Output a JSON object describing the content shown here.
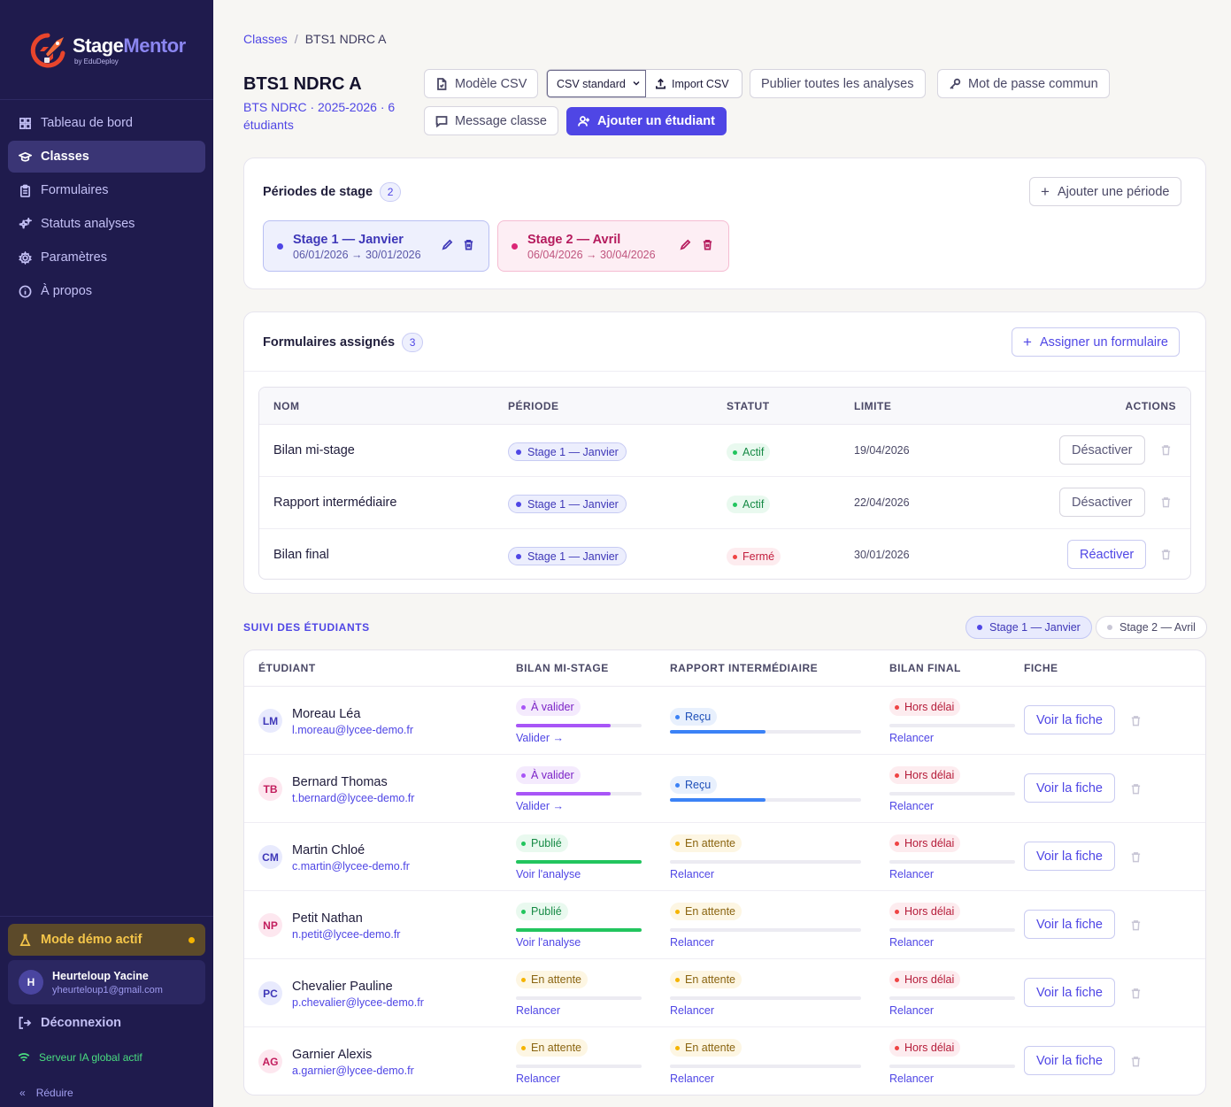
{
  "app": {
    "name_main": "Stage",
    "name_accent": "Mentor",
    "by": "by EduDeploy"
  },
  "sidebar": {
    "items": [
      {
        "label": "Tableau de bord",
        "icon": "grid-icon"
      },
      {
        "label": "Classes",
        "icon": "graduation-cap-icon",
        "active": true
      },
      {
        "label": "Formulaires",
        "icon": "clipboard-icon"
      },
      {
        "label": "Statuts analyses",
        "icon": "sparkles-icon"
      },
      {
        "label": "Paramètres",
        "icon": "gear-icon"
      },
      {
        "label": "À propos",
        "icon": "info-icon"
      }
    ],
    "demo": "Mode démo actif",
    "user": {
      "initial": "H",
      "name": "Heurteloup Yacine",
      "email": "yheurteloup1@gmail.com"
    },
    "logout": "Déconnexion",
    "ia_status": "Serveur IA global actif",
    "reduce": "Réduire"
  },
  "breadcrumb": {
    "parent": "Classes",
    "current": "BTS1 NDRC A"
  },
  "page": {
    "title": "BTS1 NDRC A",
    "subtitle": "BTS NDRC · 2025-2026 · 6 étudiants"
  },
  "toolbar": {
    "csv_model": "Modèle CSV",
    "csv_select": "CSV standard",
    "csv_import": "Import CSV",
    "publish_all": "Publier toutes les analyses",
    "common_password": "Mot de passe commun",
    "class_message": "Message classe",
    "add_student": "Ajouter un étudiant"
  },
  "periods": {
    "title": "Périodes de stage",
    "count": "2",
    "add": "Ajouter une période",
    "items": [
      {
        "name": "Stage 1 — Janvier",
        "dates": "06/01/2026 → 30/01/2026",
        "color": "#4f46e5"
      },
      {
        "name": "Stage 2 — Avril",
        "dates": "06/04/2026 → 30/04/2026",
        "color": "#db2777"
      }
    ]
  },
  "forms": {
    "title": "Formulaires assignés",
    "count": "3",
    "assign": "Assigner un formulaire",
    "columns": {
      "name": "NOM",
      "period": "PÉRIODE",
      "status": "STATUT",
      "limit": "LIMITE",
      "actions": "ACTIONS"
    },
    "rows": [
      {
        "name": "Bilan mi-stage",
        "period": "Stage 1 — Janvier",
        "status": "Actif",
        "limit": "19/04/2026",
        "action": "Désactiver"
      },
      {
        "name": "Rapport intermédiaire",
        "period": "Stage 1 — Janvier",
        "status": "Actif",
        "limit": "22/04/2026",
        "action": "Désactiver"
      },
      {
        "name": "Bilan final",
        "period": "Stage 1 — Janvier",
        "status": "Fermé",
        "limit": "30/01/2026",
        "action": "Réactiver"
      }
    ]
  },
  "tracking": {
    "title": "SUIVI DES ÉTUDIANTS",
    "filters": [
      "Stage 1 — Janvier",
      "Stage 2 — Avril"
    ],
    "columns": {
      "student": "ÉTUDIANT",
      "mid": "BILAN MI-STAGE",
      "report": "RAPPORT INTERMÉDIAIRE",
      "final": "BILAN FINAL",
      "sheet": "FICHE"
    },
    "view_sheet": "Voir la fiche",
    "students": [
      {
        "initials": "LM",
        "name": "Moreau Léa",
        "email": "l.moreau@lycee-demo.fr",
        "tone": "blue",
        "mid": {
          "status": "À valider",
          "kind": "valider",
          "progress": 0.75,
          "action": "Valider →"
        },
        "report": {
          "status": "Reçu",
          "kind": "recu",
          "progress": 0.5
        },
        "final": {
          "status": "Hors délai",
          "kind": "delai",
          "progress": 0,
          "action": "Relancer"
        }
      },
      {
        "initials": "TB",
        "name": "Bernard Thomas",
        "email": "t.bernard@lycee-demo.fr",
        "tone": "pink",
        "mid": {
          "status": "À valider",
          "kind": "valider",
          "progress": 0.75,
          "action": "Valider →"
        },
        "report": {
          "status": "Reçu",
          "kind": "recu",
          "progress": 0.5
        },
        "final": {
          "status": "Hors délai",
          "kind": "delai",
          "progress": 0,
          "action": "Relancer"
        }
      },
      {
        "initials": "CM",
        "name": "Martin Chloé",
        "email": "c.martin@lycee-demo.fr",
        "tone": "blue",
        "mid": {
          "status": "Publié",
          "kind": "publie",
          "progress": 1,
          "action": "Voir l'analyse"
        },
        "report": {
          "status": "En attente",
          "kind": "attente",
          "progress": 0,
          "action": "Relancer"
        },
        "final": {
          "status": "Hors délai",
          "kind": "delai",
          "progress": 0,
          "action": "Relancer"
        }
      },
      {
        "initials": "NP",
        "name": "Petit Nathan",
        "email": "n.petit@lycee-demo.fr",
        "tone": "pink",
        "mid": {
          "status": "Publié",
          "kind": "publie",
          "progress": 1,
          "action": "Voir l'analyse"
        },
        "report": {
          "status": "En attente",
          "kind": "attente",
          "progress": 0,
          "action": "Relancer"
        },
        "final": {
          "status": "Hors délai",
          "kind": "delai",
          "progress": 0,
          "action": "Relancer"
        }
      },
      {
        "initials": "PC",
        "name": "Chevalier Pauline",
        "email": "p.chevalier@lycee-demo.fr",
        "tone": "blue",
        "mid": {
          "status": "En attente",
          "kind": "attente",
          "progress": 0,
          "action": "Relancer"
        },
        "report": {
          "status": "En attente",
          "kind": "attente",
          "progress": 0,
          "action": "Relancer"
        },
        "final": {
          "status": "Hors délai",
          "kind": "delai",
          "progress": 0,
          "action": "Relancer"
        }
      },
      {
        "initials": "AG",
        "name": "Garnier Alexis",
        "email": "a.garnier@lycee-demo.fr",
        "tone": "pink",
        "mid": {
          "status": "En attente",
          "kind": "attente",
          "progress": 0,
          "action": "Relancer"
        },
        "report": {
          "status": "En attente",
          "kind": "attente",
          "progress": 0,
          "action": "Relancer"
        },
        "final": {
          "status": "Hors délai",
          "kind": "delai",
          "progress": 0,
          "action": "Relancer"
        }
      }
    ]
  }
}
